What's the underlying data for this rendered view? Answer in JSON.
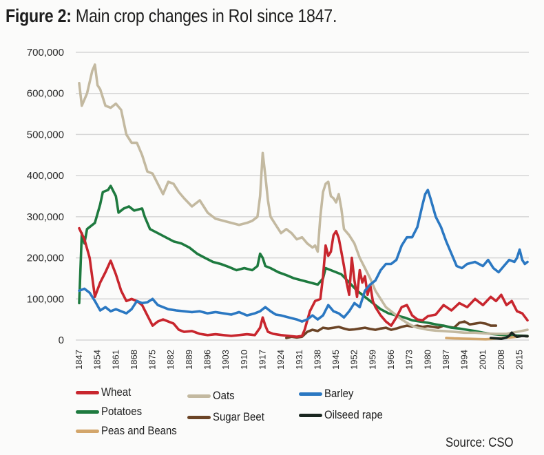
{
  "title": {
    "bold": "Figure 2:",
    "rest": "Main crop changes in RoI since 1847."
  },
  "source": "Source: CSO",
  "chart_data": {
    "type": "line",
    "title": "Figure 2: Main crop changes in RoI since 1847.",
    "xlabel": "",
    "ylabel": "",
    "xlim": [
      1847,
      2018
    ],
    "ylim": [
      0,
      700000
    ],
    "grid": true,
    "legend_position": "bottom",
    "yticks": [
      0,
      100000,
      200000,
      300000,
      400000,
      500000,
      600000,
      700000
    ],
    "ytick_labels": [
      "0",
      "100,000",
      "200,000",
      "300,000",
      "400,000",
      "500,000",
      "600,000",
      "700,000"
    ],
    "xtick_labels": [
      "1847",
      "1854",
      "1861",
      "1868",
      "1875",
      "1882",
      "1889",
      "1896",
      "1903",
      "1910",
      "1917",
      "1924",
      "1931",
      "1938",
      "1945",
      "1952",
      "1959",
      "1966",
      "1973",
      "1980",
      "1987",
      "1994",
      "2001",
      "2008",
      "2015"
    ],
    "series": [
      {
        "name": "Wheat",
        "color": "#c8262e",
        "x": [
          1847,
          1849,
          1851,
          1853,
          1855,
          1857,
          1859,
          1861,
          1863,
          1865,
          1867,
          1869,
          1871,
          1873,
          1875,
          1877,
          1879,
          1881,
          1883,
          1885,
          1887,
          1890,
          1893,
          1896,
          1899,
          1902,
          1905,
          1908,
          1911,
          1914,
          1916,
          1917,
          1918,
          1919,
          1921,
          1924,
          1927,
          1930,
          1932,
          1933,
          1935,
          1937,
          1939,
          1940,
          1941,
          1942,
          1943,
          1944,
          1945,
          1946,
          1947,
          1948,
          1949,
          1950,
          1951,
          1952,
          1953,
          1954,
          1955,
          1956,
          1957,
          1958,
          1959,
          1960,
          1962,
          1964,
          1966,
          1968,
          1970,
          1972,
          1974,
          1976,
          1978,
          1980,
          1983,
          1986,
          1989,
          1992,
          1995,
          1998,
          2001,
          2004,
          2006,
          2008,
          2010,
          2012,
          2014,
          2016,
          2018
        ],
        "values": [
          272000,
          245000,
          200000,
          105000,
          140000,
          165000,
          193000,
          160000,
          120000,
          95000,
          100000,
          95000,
          85000,
          60000,
          35000,
          45000,
          50000,
          45000,
          40000,
          25000,
          20000,
          22000,
          15000,
          12000,
          14000,
          12000,
          10000,
          12000,
          14000,
          12000,
          30000,
          55000,
          35000,
          20000,
          15000,
          12000,
          10000,
          8000,
          10000,
          25000,
          70000,
          95000,
          100000,
          155000,
          230000,
          205000,
          215000,
          255000,
          265000,
          248000,
          215000,
          180000,
          140000,
          110000,
          200000,
          145000,
          105000,
          170000,
          140000,
          155000,
          110000,
          135000,
          95000,
          80000,
          60000,
          45000,
          35000,
          55000,
          80000,
          85000,
          60000,
          50000,
          48000,
          58000,
          62000,
          85000,
          72000,
          90000,
          80000,
          100000,
          85000,
          105000,
          95000,
          110000,
          85000,
          95000,
          70000,
          65000,
          48000
        ]
      },
      {
        "name": "Oats",
        "color": "#c3b9a0",
        "x": [
          1847,
          1848,
          1850,
          1852,
          1853,
          1854,
          1855,
          1857,
          1859,
          1861,
          1863,
          1865,
          1867,
          1869,
          1871,
          1873,
          1875,
          1877,
          1879,
          1881,
          1883,
          1885,
          1887,
          1890,
          1893,
          1896,
          1899,
          1902,
          1905,
          1908,
          1911,
          1913,
          1915,
          1916,
          1917,
          1918,
          1919,
          1920,
          1922,
          1924,
          1926,
          1928,
          1930,
          1932,
          1934,
          1936,
          1937,
          1938,
          1939,
          1940,
          1941,
          1942,
          1943,
          1944,
          1945,
          1946,
          1947,
          1948,
          1950,
          1952,
          1954,
          1956,
          1958,
          1960,
          1962,
          1964,
          1966,
          1968,
          1970,
          1972,
          1974,
          1976,
          1978,
          1980,
          1983,
          1986,
          1990,
          1994,
          1998,
          2002,
          2006,
          2010,
          2014,
          2018
        ],
        "values": [
          625000,
          570000,
          600000,
          655000,
          670000,
          620000,
          610000,
          570000,
          565000,
          575000,
          560000,
          500000,
          480000,
          480000,
          450000,
          410000,
          405000,
          380000,
          355000,
          385000,
          380000,
          360000,
          345000,
          325000,
          340000,
          310000,
          295000,
          290000,
          285000,
          280000,
          285000,
          290000,
          300000,
          350000,
          455000,
          400000,
          340000,
          300000,
          280000,
          260000,
          270000,
          260000,
          245000,
          250000,
          235000,
          225000,
          230000,
          215000,
          300000,
          360000,
          380000,
          385000,
          350000,
          345000,
          335000,
          355000,
          320000,
          270000,
          255000,
          235000,
          200000,
          175000,
          150000,
          120000,
          100000,
          80000,
          70000,
          60000,
          50000,
          42000,
          35000,
          30000,
          28000,
          25000,
          23000,
          22000,
          20000,
          18000,
          18000,
          16000,
          15000,
          15000,
          20000,
          25000
        ]
      },
      {
        "name": "Barley",
        "color": "#2b78c2",
        "x": [
          1847,
          1849,
          1851,
          1853,
          1855,
          1857,
          1859,
          1861,
          1863,
          1865,
          1867,
          1869,
          1871,
          1873,
          1875,
          1877,
          1879,
          1881,
          1884,
          1887,
          1890,
          1893,
          1896,
          1899,
          1902,
          1905,
          1908,
          1911,
          1914,
          1916,
          1918,
          1920,
          1922,
          1924,
          1927,
          1930,
          1932,
          1934,
          1936,
          1938,
          1940,
          1942,
          1944,
          1946,
          1948,
          1950,
          1952,
          1954,
          1956,
          1958,
          1960,
          1962,
          1964,
          1966,
          1968,
          1970,
          1972,
          1974,
          1976,
          1978,
          1979,
          1980,
          1981,
          1983,
          1985,
          1987,
          1989,
          1991,
          1993,
          1995,
          1998,
          2001,
          2003,
          2005,
          2007,
          2009,
          2011,
          2013,
          2014,
          2015,
          2016,
          2017,
          2018
        ],
        "values": [
          120000,
          125000,
          115000,
          95000,
          72000,
          80000,
          70000,
          75000,
          70000,
          65000,
          75000,
          95000,
          90000,
          92000,
          100000,
          85000,
          80000,
          75000,
          72000,
          70000,
          68000,
          70000,
          65000,
          68000,
          65000,
          62000,
          68000,
          60000,
          65000,
          70000,
          80000,
          70000,
          62000,
          60000,
          55000,
          50000,
          45000,
          50000,
          60000,
          50000,
          60000,
          85000,
          70000,
          65000,
          55000,
          70000,
          90000,
          80000,
          120000,
          135000,
          145000,
          170000,
          185000,
          185000,
          195000,
          230000,
          250000,
          250000,
          275000,
          330000,
          355000,
          365000,
          345000,
          300000,
          275000,
          240000,
          210000,
          180000,
          175000,
          185000,
          190000,
          180000,
          195000,
          175000,
          165000,
          180000,
          195000,
          190000,
          200000,
          220000,
          195000,
          185000,
          190000
        ]
      },
      {
        "name": "Potatoes",
        "color": "#1e7a3f",
        "x": [
          1847,
          1848,
          1849,
          1850,
          1851,
          1853,
          1855,
          1856,
          1858,
          1859,
          1861,
          1862,
          1864,
          1866,
          1868,
          1871,
          1872,
          1874,
          1877,
          1880,
          1883,
          1886,
          1889,
          1892,
          1895,
          1898,
          1901,
          1904,
          1907,
          1910,
          1913,
          1915,
          1916,
          1917,
          1918,
          1920,
          1923,
          1926,
          1929,
          1932,
          1935,
          1938,
          1940,
          1941,
          1943,
          1945,
          1947,
          1950,
          1953,
          1956,
          1959,
          1962,
          1965,
          1968,
          1971,
          1974,
          1977,
          1980,
          1983,
          1986,
          1989,
          1992,
          1995,
          1998,
          2001,
          2004,
          2007,
          2010,
          2014,
          2018
        ],
        "values": [
          90000,
          260000,
          235000,
          270000,
          275000,
          285000,
          330000,
          360000,
          365000,
          375000,
          350000,
          310000,
          320000,
          325000,
          315000,
          320000,
          300000,
          270000,
          260000,
          250000,
          240000,
          235000,
          225000,
          210000,
          200000,
          190000,
          185000,
          178000,
          170000,
          175000,
          170000,
          180000,
          210000,
          200000,
          180000,
          175000,
          165000,
          158000,
          150000,
          145000,
          140000,
          135000,
          150000,
          175000,
          170000,
          165000,
          160000,
          140000,
          120000,
          105000,
          90000,
          75000,
          65000,
          60000,
          55000,
          48000,
          45000,
          42000,
          38000,
          35000,
          30000,
          28000,
          25000,
          22000,
          18000,
          15000,
          13000,
          12000,
          11000,
          10000
        ]
      },
      {
        "name": "Sugar Beet",
        "color": "#6b4426",
        "x": [
          1926,
          1928,
          1930,
          1932,
          1934,
          1936,
          1938,
          1940,
          1942,
          1944,
          1946,
          1948,
          1950,
          1952,
          1954,
          1956,
          1958,
          1960,
          1962,
          1964,
          1966,
          1968,
          1970,
          1972,
          1974,
          1976,
          1978,
          1980,
          1982,
          1984,
          1986,
          1988,
          1990,
          1992,
          1994,
          1996,
          1998,
          2000,
          2002,
          2004,
          2006
        ],
        "values": [
          5000,
          8000,
          6000,
          8000,
          20000,
          25000,
          22000,
          30000,
          28000,
          30000,
          32000,
          28000,
          25000,
          26000,
          28000,
          30000,
          27000,
          25000,
          28000,
          30000,
          25000,
          28000,
          32000,
          35000,
          33000,
          35000,
          32000,
          34000,
          32000,
          30000,
          35000,
          32000,
          30000,
          42000,
          45000,
          38000,
          40000,
          42000,
          40000,
          35000,
          35000
        ]
      },
      {
        "name": "Oilseed rape",
        "color": "#1a2620",
        "x": [
          2004,
          2006,
          2008,
          2010,
          2011,
          2012,
          2013,
          2014,
          2016,
          2018
        ],
        "values": [
          5000,
          4000,
          3000,
          6000,
          10000,
          18000,
          12000,
          8000,
          10000,
          9000
        ]
      },
      {
        "name": "Peas and Beans",
        "color": "#d3a66b",
        "x": [
          1987,
          1990,
          1993,
          1996,
          1999,
          2002,
          2005,
          2008,
          2011,
          2014,
          2016,
          2018
        ],
        "values": [
          5000,
          4000,
          3500,
          3000,
          2500,
          2000,
          3000,
          5000,
          6000,
          8000,
          10000,
          9000
        ]
      }
    ]
  },
  "legend": [
    {
      "label": "Wheat",
      "color": "#c8262e"
    },
    {
      "label": "Oats",
      "color": "#c3b9a0"
    },
    {
      "label": "Barley",
      "color": "#2b78c2"
    },
    {
      "label": "Potatoes",
      "color": "#1e7a3f"
    },
    {
      "label": "Sugar Beet",
      "color": "#6b4426"
    },
    {
      "label": "Oilseed rape",
      "color": "#1a2620"
    },
    {
      "label": "Peas and Beans",
      "color": "#d3a66b"
    }
  ]
}
